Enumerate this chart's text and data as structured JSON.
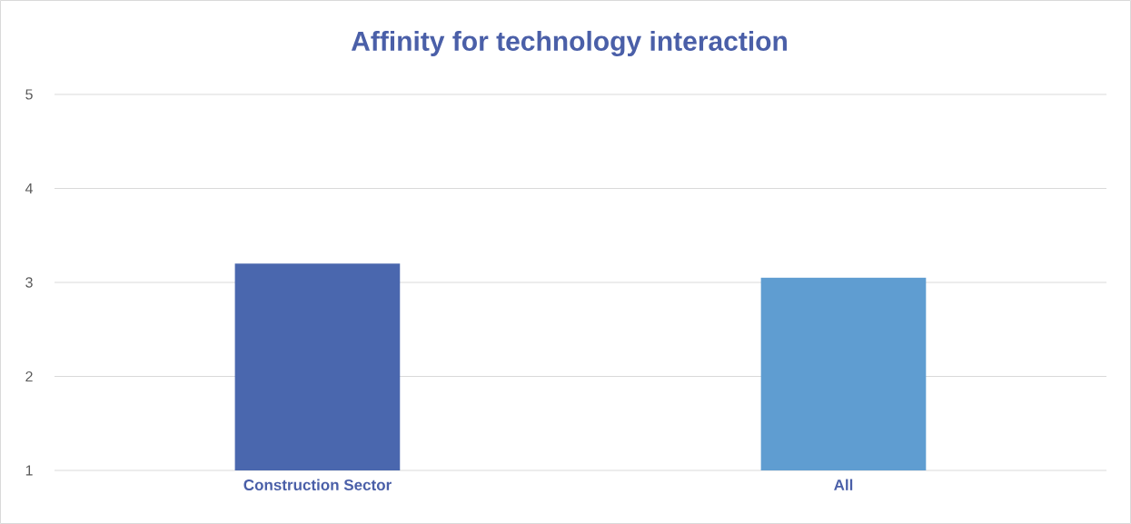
{
  "chart_data": {
    "type": "bar",
    "title": "Affinity for technology interaction",
    "categories": [
      "Construction Sector",
      "All"
    ],
    "values": [
      3.2,
      3.05
    ],
    "colors": [
      "#4a67ae",
      "#5f9dd1"
    ],
    "ylim": [
      1,
      5
    ],
    "yticks": [
      1,
      2,
      3,
      4,
      5
    ],
    "grid": "y"
  }
}
